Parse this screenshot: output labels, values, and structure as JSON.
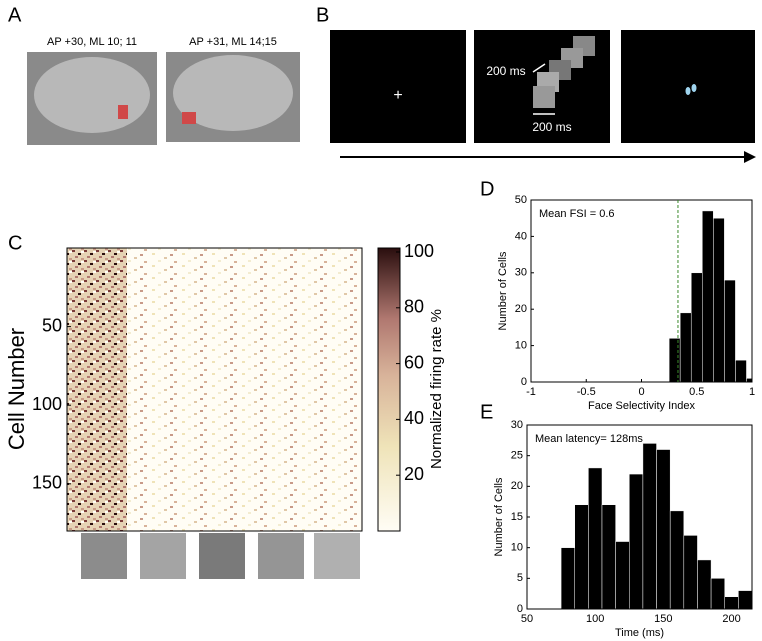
{
  "panel_a": {
    "label": "A",
    "captions": [
      "AP +30, ML 10; 11",
      "AP +31, ML 14;15"
    ]
  },
  "panel_b": {
    "label": "B",
    "fixation": "+",
    "isi": "200 ms",
    "duration": "200 ms"
  },
  "panel_c": {
    "label": "C",
    "y_label": "Cell Number",
    "ylim": [
      0,
      180
    ],
    "yticks": [
      50,
      100,
      150
    ],
    "colorbar": {
      "label": "Normalized firing rate %",
      "lim": [
        0,
        100
      ],
      "ticks": [
        20,
        40,
        60,
        80,
        100
      ]
    }
  },
  "chart_data": [
    {
      "type": "histogram",
      "label": "D",
      "x_label": "Face Selectivity Index",
      "y_label": "Number of Cells",
      "annotation": "Mean FSI = 0.6",
      "bins": [
        0.25,
        0.35,
        0.45,
        0.55,
        0.65,
        0.75,
        0.85,
        0.95,
        1.0
      ],
      "values": [
        12,
        19,
        30,
        47,
        45,
        28,
        6,
        1
      ],
      "color": "#000000",
      "reference_line": {
        "x": 0.33,
        "color": "#3a8a2a"
      },
      "xlim": [
        -1,
        1
      ],
      "xticks": [
        -1,
        -0.5,
        0,
        0.5,
        1
      ],
      "ylim": [
        0,
        50
      ],
      "yticks": [
        0,
        10,
        20,
        30,
        40,
        50
      ]
    },
    {
      "type": "histogram",
      "label": "E",
      "x_label": "Time (ms)",
      "y_label": "Number of Cells",
      "annotation": "Mean latency= 128ms",
      "bins": [
        75,
        85,
        95,
        105,
        115,
        125,
        135,
        145,
        155,
        165,
        175,
        185,
        195,
        205,
        215
      ],
      "values": [
        10,
        17,
        23,
        17,
        11,
        22,
        27,
        26,
        16,
        12,
        8,
        5,
        2,
        3
      ],
      "color": "#000000",
      "xlim": [
        50,
        215
      ],
      "xticks": [
        50,
        100,
        150,
        200
      ],
      "ylim": [
        0,
        30
      ],
      "yticks": [
        0,
        5,
        10,
        15,
        20,
        25,
        30
      ]
    }
  ]
}
